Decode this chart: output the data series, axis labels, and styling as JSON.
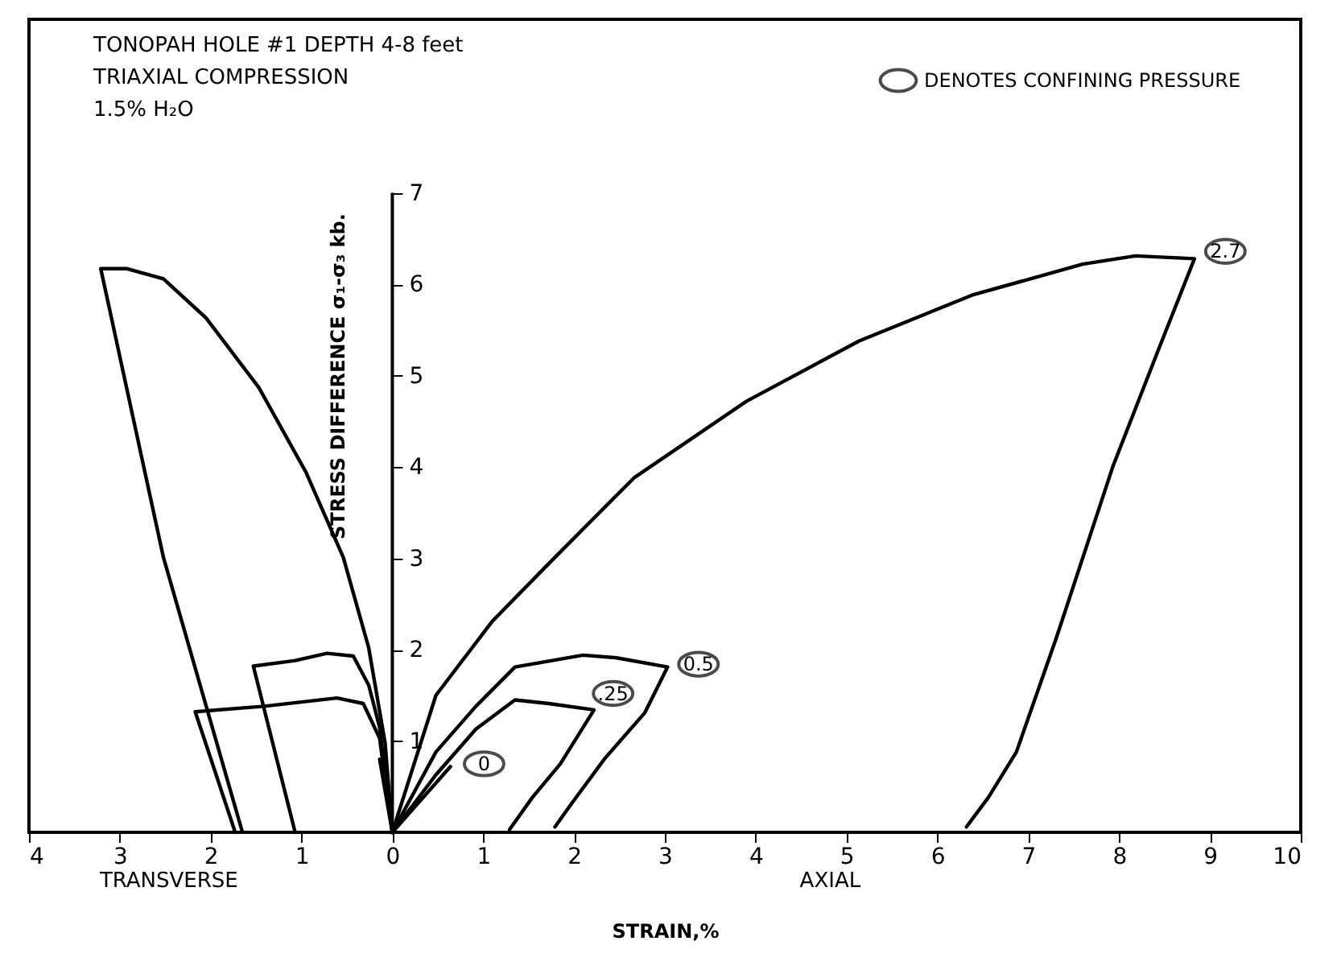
{
  "chart_data": {
    "type": "line",
    "title": "TONOPAH HOLE #1  DEPTH 4-8 feet",
    "subtitle": "TRIAXIAL COMPRESSION\n1.5% H₂O",
    "xlabel": "STRAIN,%",
    "ylabel": "STRESS DIFFERENCE σ₁-σ₃ kb.",
    "xlim": [
      -4,
      10
    ],
    "xticks": [
      {
        "value": -4,
        "label": "4"
      },
      {
        "value": -3,
        "label": "3"
      },
      {
        "value": -2,
        "label": "2"
      },
      {
        "value": -1,
        "label": "1"
      },
      0,
      1,
      2,
      3,
      4,
      5,
      6,
      7,
      8,
      9,
      10
    ],
    "ylim": [
      0,
      8.9
    ],
    "yticks": [
      1,
      2,
      3,
      4,
      5,
      6,
      7
    ],
    "marker": "none",
    "line_style": "solid",
    "series": [
      {
        "color": "#000000",
        "x": [
          0,
          0.48,
          1.1,
          1.72,
          2.66,
          3.9,
          5.14,
          6.38,
          7.6,
          8.18,
          8.83,
          8.42,
          7.93,
          7.31,
          6.87,
          6.56,
          6.32
        ],
        "values": [
          0,
          1.5,
          2.31,
          2.94,
          3.88,
          4.72,
          5.38,
          5.88,
          6.22,
          6.31,
          6.28,
          5.25,
          4.0,
          2.13,
          0.88,
          0.38,
          0.06
        ]
      },
      {
        "color": "#000000",
        "x": [
          0,
          0.48,
          0.92,
          1.35,
          2.1,
          2.47,
          3.03,
          2.78,
          2.34,
          1.97,
          1.79
        ],
        "values": [
          0,
          0.88,
          1.38,
          1.81,
          1.94,
          1.91,
          1.81,
          1.31,
          0.81,
          0.31,
          0.06
        ]
      },
      {
        "color": "#000000",
        "x": [
          0,
          0.48,
          0.92,
          1.35,
          1.72,
          2.22,
          1.85,
          1.54,
          1.29
        ],
        "values": [
          0,
          0.63,
          1.13,
          1.45,
          1.41,
          1.34,
          0.75,
          0.38,
          0.03
        ]
      },
      {
        "color": "#000000",
        "x": [
          0,
          0.64
        ],
        "values": [
          0,
          0.72
        ]
      },
      {
        "color": "#000000",
        "x": [
          0,
          -0.08,
          -0.26,
          -0.54,
          -0.95,
          -1.47,
          -2.05,
          -2.52,
          -2.92,
          -3.21,
          -2.52,
          -1.65
        ],
        "values": [
          0,
          0.98,
          2.02,
          3.01,
          3.94,
          4.87,
          5.63,
          6.06,
          6.17,
          6.17,
          3.01,
          0
        ]
      },
      {
        "color": "#000000",
        "x": [
          0,
          -0.14,
          -0.26,
          -0.43,
          -0.72,
          -1.07,
          -1.53,
          -1.07
        ],
        "values": [
          0,
          1.15,
          1.61,
          1.93,
          1.96,
          1.88,
          1.82,
          0
        ]
      },
      {
        "color": "#000000",
        "x": [
          0,
          -0.14,
          -0.32,
          -0.61,
          -1.41,
          -2.17,
          -1.73
        ],
        "values": [
          0,
          1.03,
          1.41,
          1.47,
          1.38,
          1.32,
          0
        ]
      },
      {
        "color": "#000000",
        "x": [
          0,
          -0.14
        ],
        "values": [
          0,
          0.8
        ]
      }
    ],
    "annotations": [
      "DENOTES CONFINING PRESSURE",
      {
        "text": "2.7",
        "x": 9.17,
        "y": 6.36
      },
      {
        "text": "0.5",
        "x": 3.37,
        "y": 1.84
      },
      {
        "text": ".25",
        "x": 2.43,
        "y": 1.52
      },
      {
        "text": "0",
        "x": 1.01,
        "y": 0.75
      },
      "TRANSVERSE",
      "AXIAL"
    ]
  }
}
